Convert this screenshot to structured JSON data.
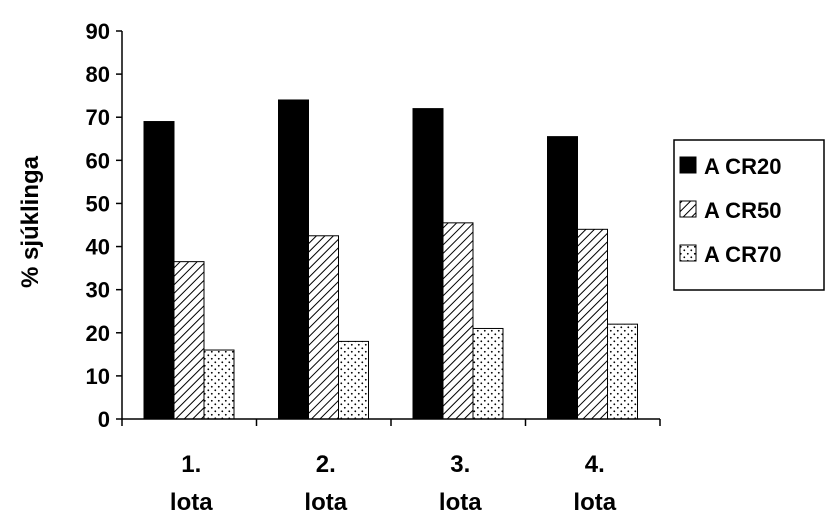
{
  "chart_data": {
    "type": "bar",
    "ylabel": "% sjúklinga",
    "ylim": [
      0,
      90
    ],
    "yticks": [
      0,
      10,
      20,
      30,
      40,
      50,
      60,
      70,
      80,
      90
    ],
    "categories": [
      [
        "1.",
        "lota"
      ],
      [
        "2.",
        "lota"
      ],
      [
        "3.",
        "lota"
      ],
      [
        "4.",
        "lota"
      ]
    ],
    "series": [
      {
        "name": "A CR20",
        "values": [
          69,
          74,
          72,
          65.5
        ],
        "fill": "solid",
        "color": "#000000"
      },
      {
        "name": "A CR50",
        "values": [
          36.5,
          42.5,
          45.5,
          44
        ],
        "fill": "hatch",
        "color": "#000000"
      },
      {
        "name": "A CR70",
        "values": [
          16,
          18,
          21,
          22
        ],
        "fill": "dots",
        "color": "#000000"
      }
    ],
    "legend_position": "right",
    "grid": false
  }
}
